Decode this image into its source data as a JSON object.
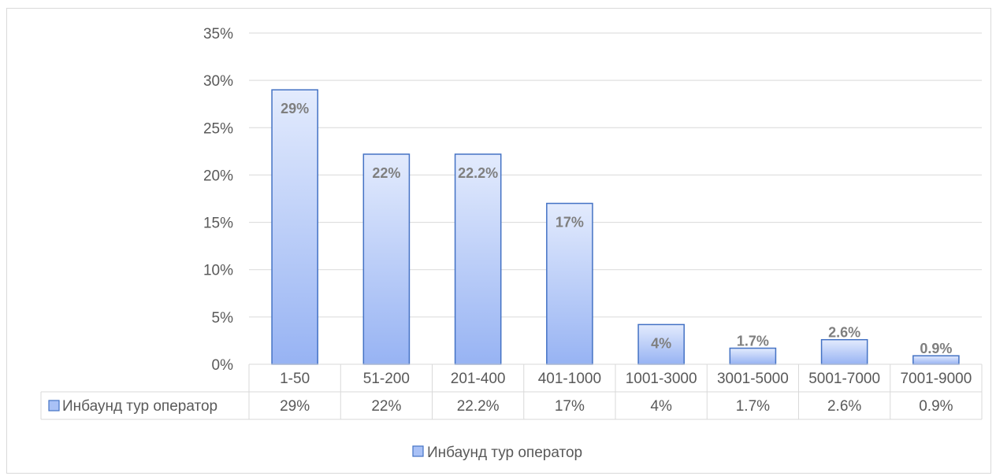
{
  "chart_data": {
    "type": "bar",
    "categories": [
      "1-50",
      "51-200",
      "201-400",
      "401-1000",
      "1001-3000",
      "3001-5000",
      "5001-7000",
      "7001-9000"
    ],
    "series": [
      {
        "name": "Инбаунд тур оператор",
        "values": [
          29,
          22.2,
          22.2,
          17,
          4.2,
          1.7,
          2.6,
          0.9
        ],
        "data_labels": [
          "29%",
          "22%",
          "22.2%",
          "17%",
          "4%",
          "1.7%",
          "2.6%",
          "0.9%"
        ],
        "color": "#a9c1f6",
        "border_color": "#4472c4"
      }
    ],
    "y_ticks": [
      "0%",
      "5%",
      "10%",
      "15%",
      "20%",
      "25%",
      "30%",
      "35%"
    ],
    "ylim": [
      0,
      35
    ],
    "grid": true,
    "legend_position": "bottom",
    "data_table": {
      "row_label": "Инбаунд тур оператор",
      "cells": [
        "29%",
        "22%",
        "22.2%",
        "17%",
        "4%",
        "1.7%",
        "2.6%",
        "0.9%"
      ]
    }
  }
}
